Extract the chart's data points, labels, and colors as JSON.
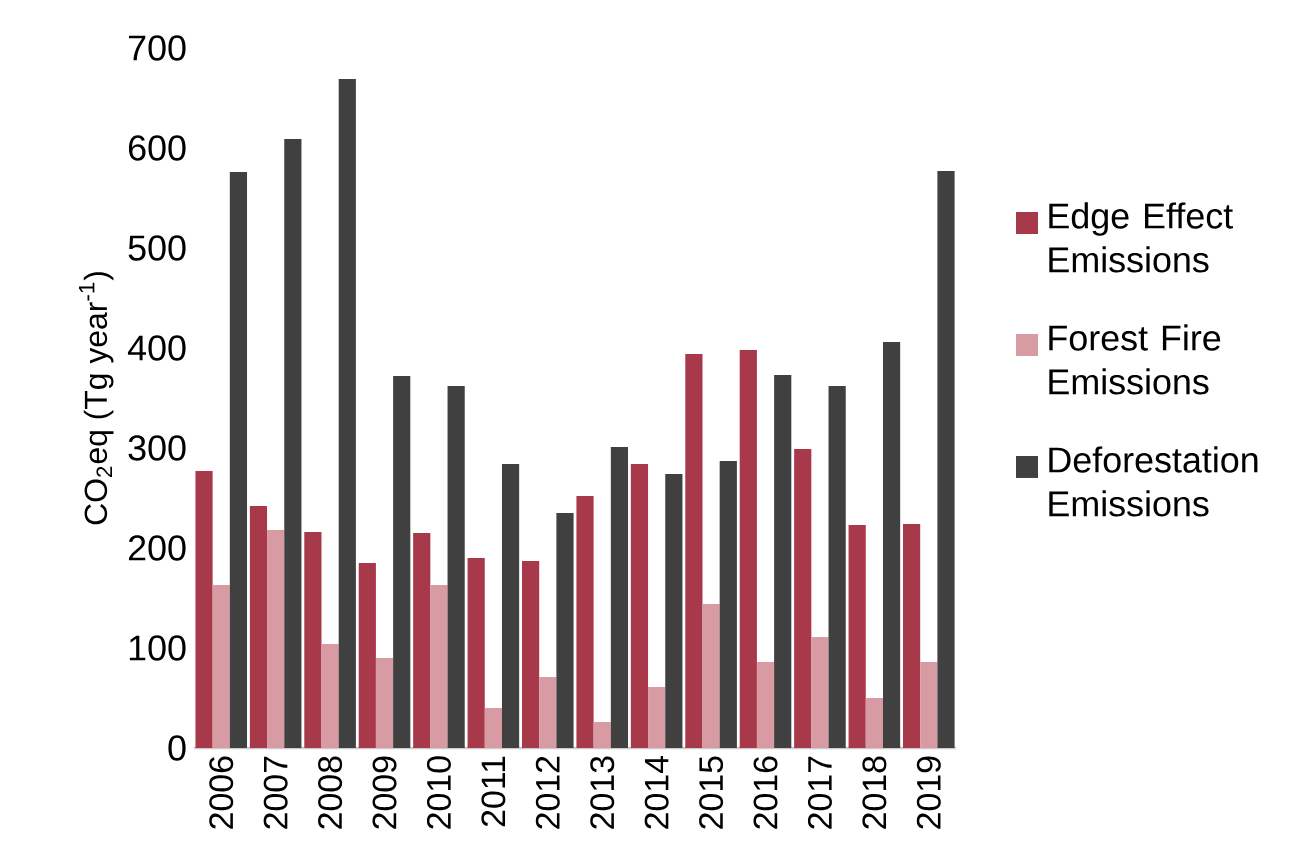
{
  "chart_data": {
    "type": "bar",
    "ylabel": "CO$_{2}$eq (Tg year$^{-1}$)",
    "categories": [
      "2006",
      "2007",
      "2008",
      "2009",
      "2010",
      "2011",
      "2012",
      "2013",
      "2014",
      "2015",
      "2016",
      "2017",
      "2018",
      "2019"
    ],
    "series": [
      {
        "name": "Edge Effect Emissions",
        "color": "#a8394a",
        "values": [
          277,
          242,
          216,
          185,
          215,
          190,
          187,
          252,
          284,
          394,
          398,
          299,
          223,
          224
        ]
      },
      {
        "name": "Forest Fire Emissions",
        "color": "#d89aa3",
        "values": [
          163,
          218,
          104,
          90,
          163,
          40,
          71,
          26,
          61,
          144,
          86,
          111,
          50,
          86
        ]
      },
      {
        "name": "Deforestation Emissions",
        "color": "#404040",
        "values": [
          576,
          609,
          669,
          372,
          362,
          284,
          235,
          301,
          274,
          287,
          373,
          362,
          406,
          577
        ]
      }
    ],
    "ylim": [
      0,
      700
    ],
    "yticks": [
      0,
      100,
      200,
      300,
      400,
      500,
      600,
      700
    ],
    "legend": "right"
  }
}
